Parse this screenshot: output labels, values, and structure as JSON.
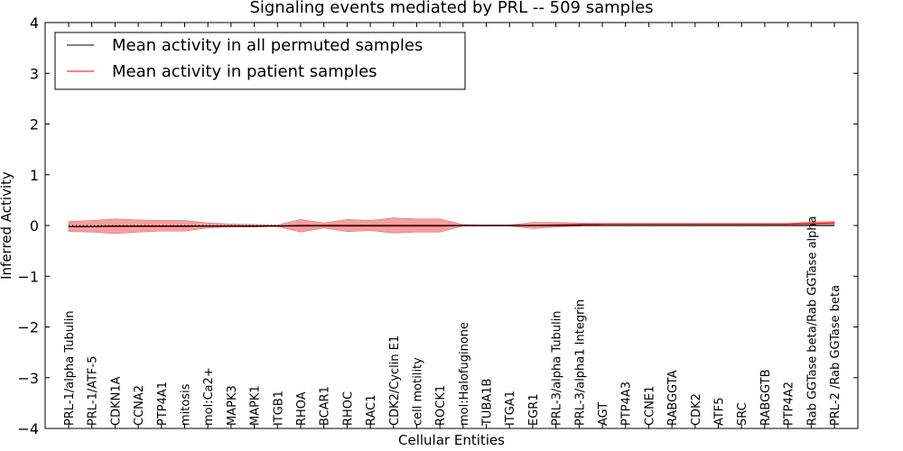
{
  "chart_data": {
    "type": "line",
    "title": "Signaling events mediated by PRL -- 509 samples",
    "xlabel": "Cellular Entities",
    "ylabel": "Inferred Activity",
    "ylim": [
      -4,
      4
    ],
    "yticks": [
      4,
      3,
      2,
      1,
      0,
      -1,
      -2,
      -3,
      -4
    ],
    "ytick_labels": [
      "4",
      "3",
      "2",
      "1",
      "0",
      "−1",
      "−2",
      "−3",
      "−4"
    ],
    "categories": [
      "PRL-1/alpha Tubulin",
      "PRL-1/ATF-5",
      "CDKN1A",
      "CCNA2",
      "PTP4A1",
      "mitosis",
      "mol:Ca2+",
      "MAPK3",
      "MAPK1",
      "ITGB1",
      "RHOA",
      "BCAR1",
      "RHOC",
      "RAC1",
      "CDK2/Cyclin E1",
      "cell motility",
      "ROCK1",
      "mol:Halofuginone",
      "TUBA1B",
      "ITGA1",
      "EGR1",
      "PRL-3/alpha Tubulin",
      "PRL-3/alpha1 Integrin",
      "AGT",
      "PTP4A3",
      "CCNE1",
      "RABGGTA",
      "CDK2",
      "ATF5",
      "SRC",
      "RABGGTB",
      "PTP4A2",
      "Rab GGTase beta/Rab GGTase alpha",
      "PRL-2 /Rab GGTase beta"
    ],
    "legend_location": "top-left",
    "series": [
      {
        "name": "Mean activity in all permuted samples",
        "color": "#000000",
        "values": [
          -0.02,
          -0.02,
          -0.01,
          -0.01,
          -0.01,
          -0.01,
          -0.01,
          -0.01,
          -0.01,
          -0.01,
          0.0,
          0.0,
          0.0,
          0.0,
          0.0,
          0.0,
          0.0,
          0.0,
          0.0,
          0.0,
          0.0,
          0.0,
          0.0,
          0.0,
          0.0,
          0.0,
          0.0,
          0.0,
          0.0,
          0.0,
          0.0,
          0.0,
          0.0,
          0.0
        ]
      },
      {
        "name": "Mean activity in patient samples",
        "color": "#ff0000",
        "values": [
          -0.02,
          -0.02,
          -0.02,
          -0.02,
          -0.02,
          -0.02,
          -0.01,
          -0.01,
          -0.01,
          -0.01,
          -0.01,
          -0.01,
          -0.01,
          -0.01,
          -0.01,
          -0.01,
          -0.01,
          0.0,
          0.0,
          0.0,
          0.0,
          0.01,
          0.02,
          0.03,
          0.03,
          0.03,
          0.03,
          0.03,
          0.03,
          0.03,
          0.03,
          0.03,
          0.04,
          0.05
        ]
      }
    ],
    "band": {
      "color": "#f08080",
      "upper": [
        0.08,
        0.1,
        0.13,
        0.11,
        0.1,
        0.1,
        0.05,
        0.03,
        0.02,
        0.01,
        0.12,
        0.05,
        0.12,
        0.1,
        0.15,
        0.13,
        0.13,
        0.02,
        0.01,
        0.01,
        0.06,
        0.06,
        0.05,
        0.04,
        0.04,
        0.04,
        0.04,
        0.04,
        0.04,
        0.04,
        0.04,
        0.04,
        0.07,
        0.08
      ],
      "lower": [
        -0.12,
        -0.13,
        -0.16,
        -0.13,
        -0.11,
        -0.11,
        -0.05,
        -0.03,
        -0.03,
        -0.02,
        -0.13,
        -0.05,
        -0.12,
        -0.1,
        -0.15,
        -0.13,
        -0.13,
        -0.01,
        -0.01,
        -0.01,
        -0.06,
        -0.03,
        -0.01,
        0.02,
        0.02,
        0.02,
        0.02,
        0.02,
        0.02,
        0.02,
        0.02,
        0.02,
        0.02,
        0.02
      ]
    },
    "zero_line": "dotted"
  }
}
